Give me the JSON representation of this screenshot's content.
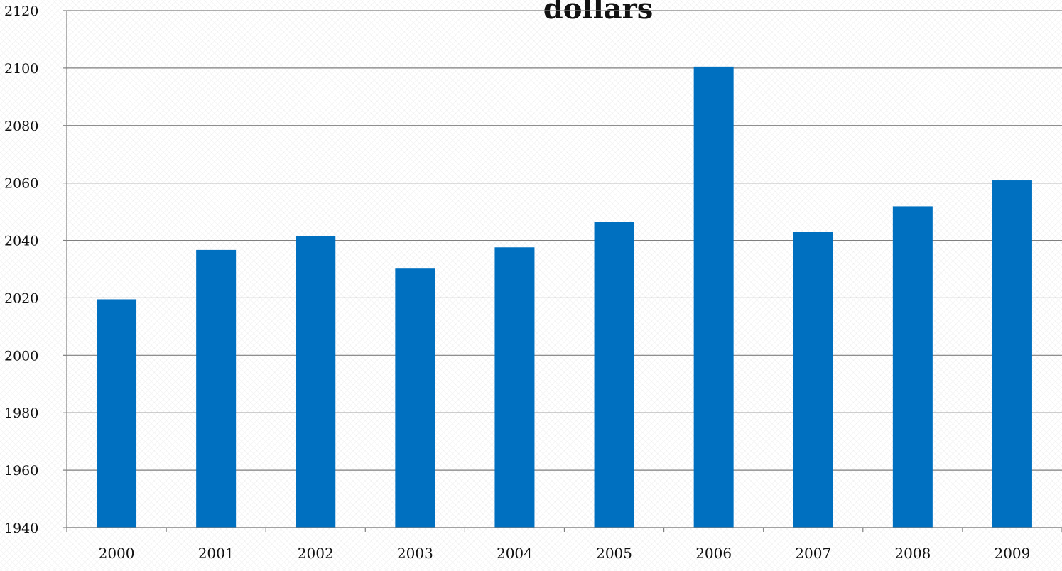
{
  "chart_data": {
    "type": "bar",
    "title": "dollars",
    "xlabel": "",
    "ylabel": "",
    "categories": [
      "2000",
      "2001",
      "2002",
      "2003",
      "2004",
      "2005",
      "2006",
      "2007",
      "2008",
      "2009"
    ],
    "values": [
      2019.5,
      2036.7,
      2041.4,
      2030.2,
      2037.6,
      2046.5,
      2100.5,
      2042.9,
      2051.9,
      2060.9
    ],
    "ylim": [
      1940,
      2120
    ],
    "yticks": [
      "1940",
      "1960",
      "1980",
      "2000",
      "2020",
      "2040",
      "2060",
      "2080",
      "2100",
      "2120"
    ],
    "grid": true,
    "bar_color": "#0070C0"
  }
}
